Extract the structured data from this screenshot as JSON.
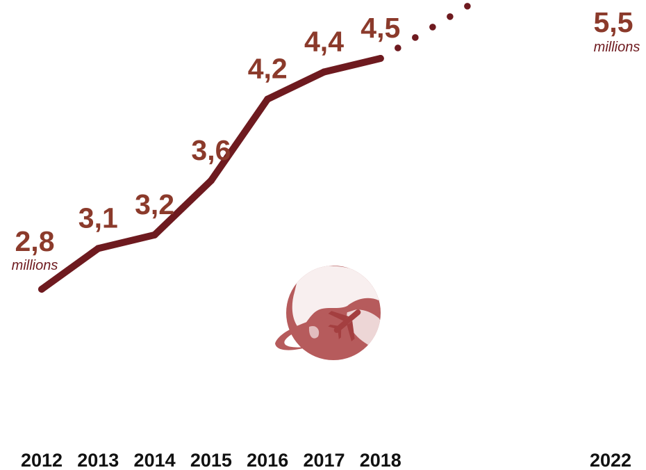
{
  "chart_data": {
    "type": "line",
    "x": [
      "2012",
      "2013",
      "2014",
      "2015",
      "2016",
      "2017",
      "2018",
      "2022"
    ],
    "series": [
      {
        "values": [
          2.8,
          3.1,
          3.2,
          3.6,
          4.2,
          4.4,
          4.5,
          5.5
        ],
        "value_labels": [
          "2,8",
          "3,1",
          "3,2",
          "3,6",
          "4,2",
          "4,4",
          "4,5",
          "5,5"
        ],
        "projected_from": "2018"
      }
    ],
    "unit_label": "millions",
    "line_color": "#6e1a1f",
    "label_color": "#8b3a2b",
    "globe_color": "#b25a5a",
    "icon": "globe-airplane-icon",
    "grid": false,
    "axes_visible": false
  }
}
